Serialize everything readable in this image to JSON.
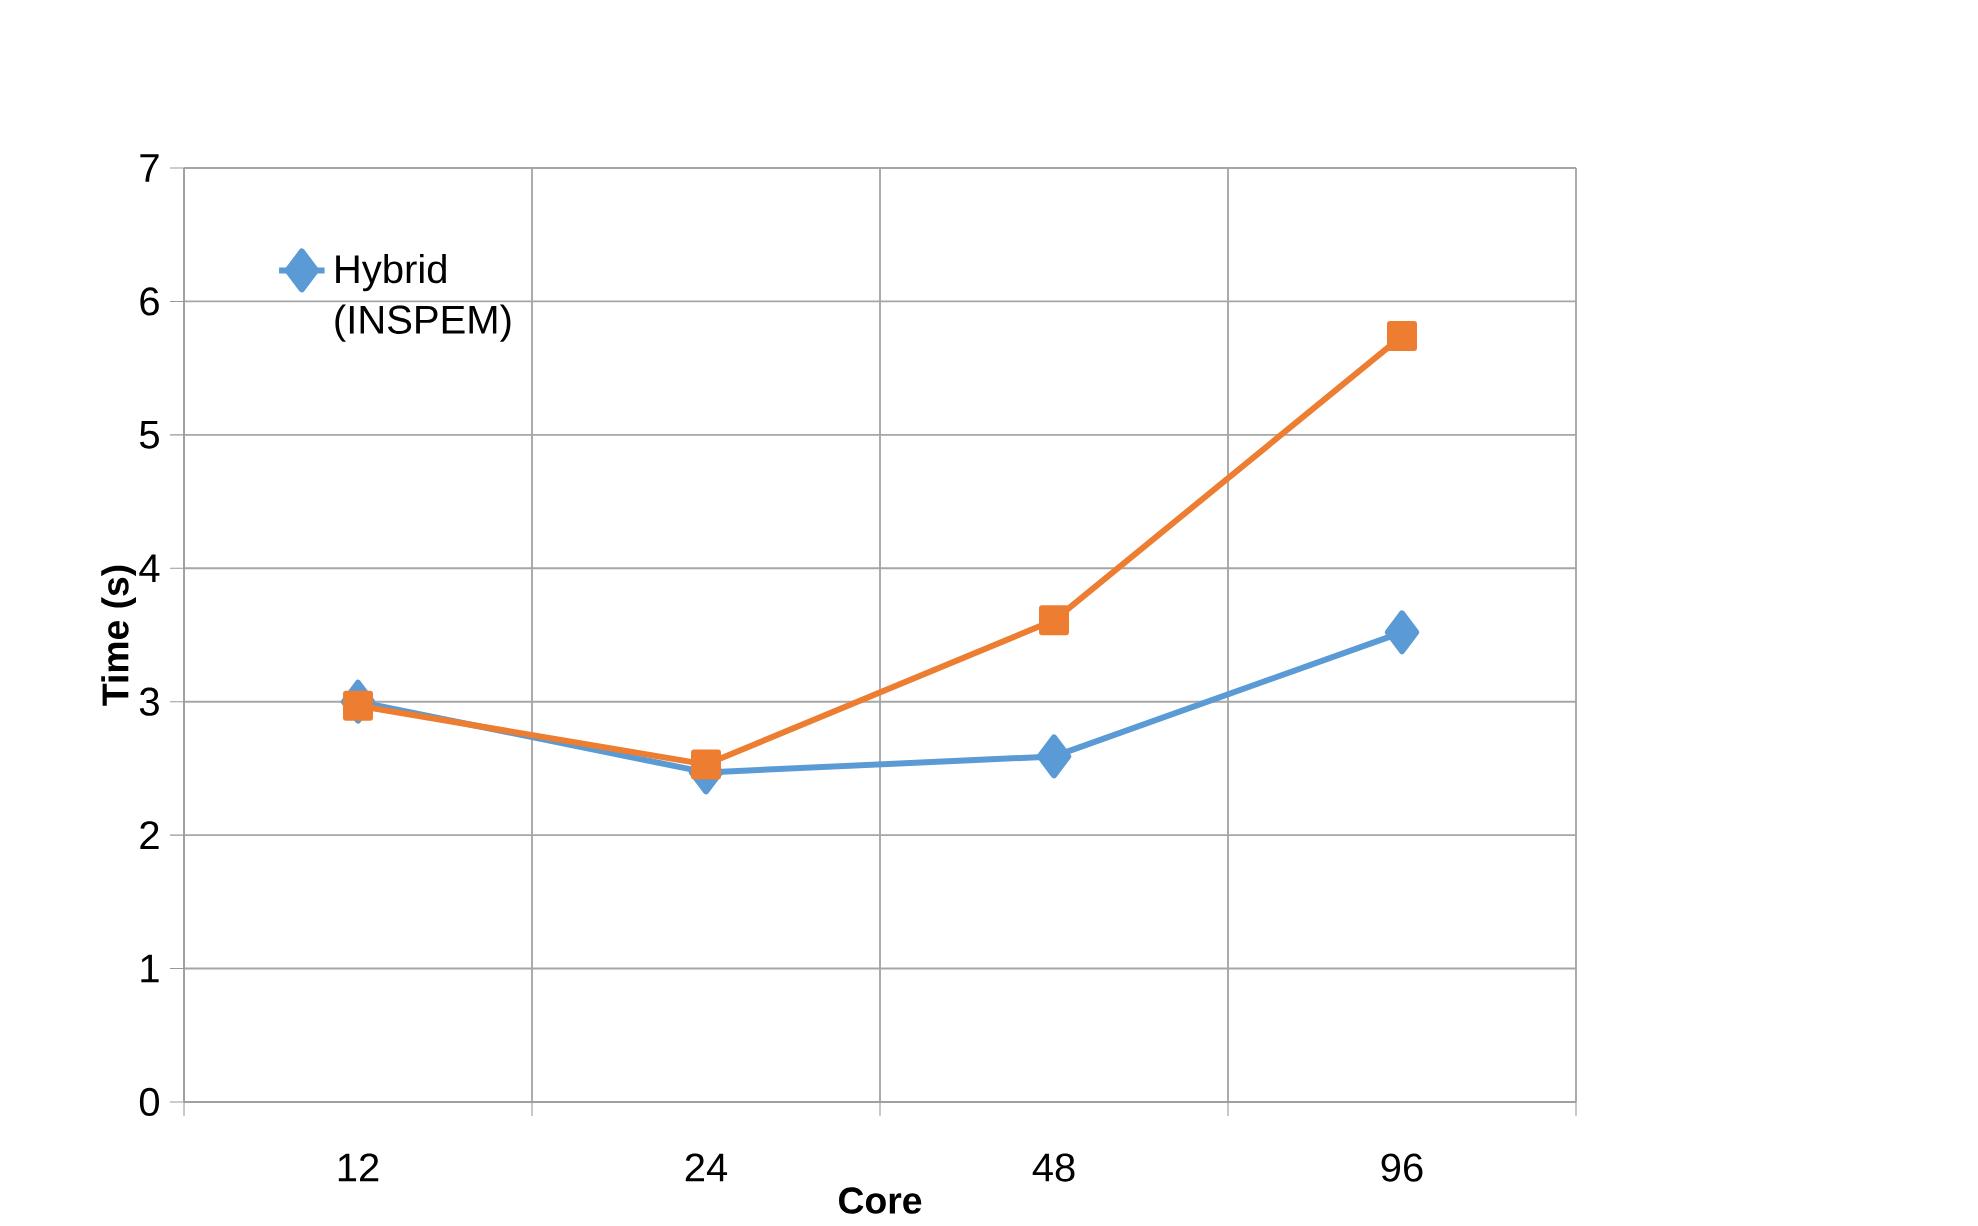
{
  "chart_data": {
    "type": "line",
    "xlabel": "Core",
    "ylabel": "Time (s)",
    "categories": [
      "12",
      "24",
      "48",
      "96"
    ],
    "series": [
      {
        "name": "Hybrid (INSPEM)",
        "color": "#5b9bd5",
        "marker": "diamond",
        "values": [
          3.0,
          2.47,
          2.59,
          3.52
        ]
      },
      {
        "color": "#ed7d31",
        "marker": "square",
        "values": [
          2.97,
          2.53,
          3.61,
          5.74
        ]
      }
    ],
    "ylim": [
      0,
      7
    ],
    "yticks": [
      0,
      1,
      2,
      3,
      4,
      5,
      6,
      7
    ],
    "grid": true,
    "legend": "top left"
  }
}
